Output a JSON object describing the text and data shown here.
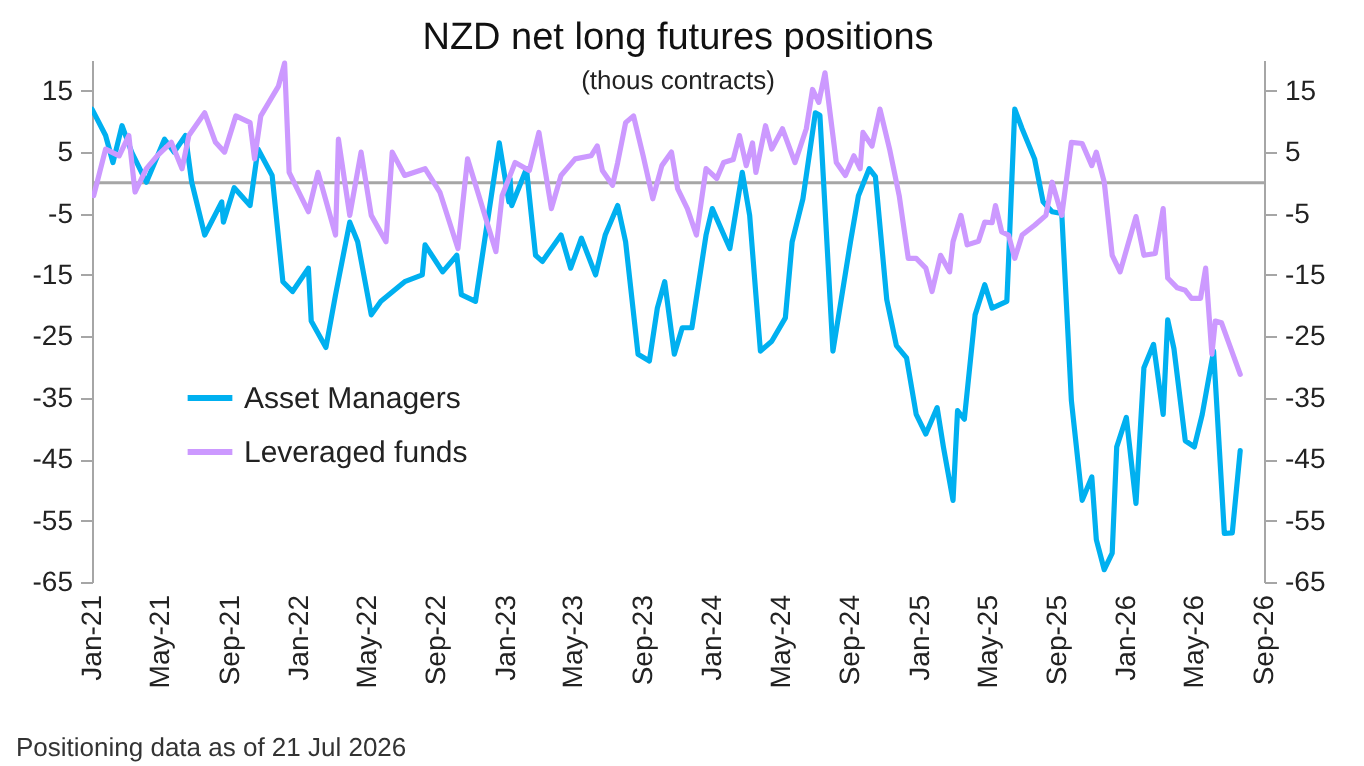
{
  "chart_data": {
    "type": "line",
    "title": "NZD net long futures positions",
    "subtitle": "(thous contracts)",
    "annotations": [
      "Positioning data as of 21 Jul 2026"
    ],
    "xlim": [
      "2021-01-01",
      "2026-09-01"
    ],
    "xticks": [
      {
        "value": "2021-01-01",
        "label": "Jan-21"
      },
      {
        "value": "2021-05-01",
        "label": "May-21"
      },
      {
        "value": "2021-09-01",
        "label": "Sep-21"
      },
      {
        "value": "2022-01-01",
        "label": "Jan-22"
      },
      {
        "value": "2022-05-01",
        "label": "May-22"
      },
      {
        "value": "2022-09-01",
        "label": "Sep-22"
      },
      {
        "value": "2023-01-01",
        "label": "Jan-23"
      },
      {
        "value": "2023-05-01",
        "label": "May-23"
      },
      {
        "value": "2023-09-01",
        "label": "Sep-23"
      },
      {
        "value": "2024-01-01",
        "label": "Jan-24"
      },
      {
        "value": "2024-05-01",
        "label": "May-24"
      },
      {
        "value": "2024-09-01",
        "label": "Sep-24"
      },
      {
        "value": "2025-01-01",
        "label": "Jan-25"
      },
      {
        "value": "2025-05-01",
        "label": "May-25"
      },
      {
        "value": "2025-09-01",
        "label": "Sep-25"
      },
      {
        "value": "2026-01-01",
        "label": "Jan-26"
      },
      {
        "value": "2026-05-01",
        "label": "May-26"
      },
      {
        "value": "2026-09-01",
        "label": "Sep-26"
      }
    ],
    "ylim": [
      -65,
      20
    ],
    "yticks": [
      -65,
      -55,
      -45,
      -35,
      -25,
      -15,
      -5,
      5,
      15
    ],
    "y2lim": [
      -65,
      20
    ],
    "y2ticks": [
      -65,
      -55,
      -45,
      -35,
      -25,
      -15,
      -5,
      5,
      15
    ],
    "ref_lines": [
      {
        "axis": "y",
        "value": 0,
        "color": "#a6a6a6"
      }
    ],
    "legend": "bottom left",
    "grid": false,
    "series": [
      {
        "name": "Asset Managers",
        "color": "#00b0f0",
        "x": [
          "2021-01-01",
          "2021-01-25",
          "2021-02-07",
          "2021-02-23",
          "2021-03-12",
          "2021-04-07",
          "2021-05-09",
          "2021-05-26",
          "2021-06-15",
          "2021-06-26",
          "2021-07-19",
          "2021-08-18",
          "2021-08-21",
          "2021-09-09",
          "2021-10-07",
          "2021-10-21",
          "2021-11-15",
          "2021-12-04",
          "2021-12-21",
          "2022-01-18",
          "2022-01-23",
          "2022-02-18",
          "2022-03-07",
          "2022-04-01",
          "2022-04-15",
          "2022-05-09",
          "2022-05-26",
          "2022-07-07",
          "2022-08-07",
          "2022-08-12",
          "2022-09-12",
          "2022-10-07",
          "2022-10-15",
          "2022-11-09",
          "2022-12-21",
          "2023-01-07",
          "2023-01-09",
          "2023-01-12",
          "2023-02-07",
          "2023-02-23",
          "2023-03-07",
          "2023-04-09",
          "2023-04-26",
          "2023-05-15",
          "2023-06-09",
          "2023-06-26",
          "2023-07-18",
          "2023-08-01",
          "2023-08-23",
          "2023-09-12",
          "2023-09-26",
          "2023-10-09",
          "2023-10-26",
          "2023-11-09",
          "2023-11-26",
          "2023-12-21",
          "2024-01-01",
          "2024-02-01",
          "2024-02-23",
          "2024-03-07",
          "2024-03-18",
          "2024-03-26",
          "2024-04-15",
          "2024-05-09",
          "2024-05-21",
          "2024-06-09",
          "2024-07-01",
          "2024-07-09",
          "2024-08-01",
          "2024-09-01",
          "2024-09-15",
          "2024-10-04",
          "2024-10-15",
          "2024-11-04",
          "2024-11-21",
          "2024-12-09",
          "2024-12-26",
          "2025-01-12",
          "2025-02-01",
          "2025-02-12",
          "2025-03-01",
          "2025-03-09",
          "2025-03-21",
          "2025-04-09",
          "2025-04-26",
          "2025-05-09",
          "2025-06-04",
          "2025-06-07",
          "2025-06-18",
          "2025-07-01",
          "2025-07-23",
          "2025-08-07",
          "2025-08-23",
          "2025-09-09",
          "2025-09-26",
          "2025-10-15",
          "2025-11-01",
          "2025-11-09",
          "2025-11-23",
          "2025-12-07",
          "2025-12-15",
          "2026-01-01",
          "2026-01-18",
          "2026-02-01",
          "2026-02-18",
          "2026-03-07",
          "2026-03-15",
          "2026-03-26",
          "2026-04-15",
          "2026-05-01",
          "2026-05-15",
          "2026-06-04",
          "2026-06-23",
          "2026-07-07",
          "2026-07-21"
        ],
        "values": [
          12,
          7.7,
          3.3,
          9.3,
          5,
          0.1,
          7.1,
          5,
          7.7,
          0.1,
          -8.5,
          -3.1,
          -6.4,
          -0.8,
          -3.7,
          5.5,
          1.2,
          -16.1,
          -17.7,
          -13.9,
          -22.5,
          -26.8,
          -18.2,
          -6.4,
          -9.6,
          -21.5,
          -19.3,
          -16.1,
          -15,
          -10.1,
          -14.5,
          -11.8,
          -18.2,
          -19.3,
          6.5,
          -3.1,
          0.7,
          -3.7,
          2.3,
          -11.8,
          -12.8,
          -8.5,
          -13.9,
          -9,
          -15,
          -8.5,
          -3.7,
          -9.6,
          -27.9,
          -29,
          -20.4,
          -16.1,
          -27.9,
          -23.6,
          -23.6,
          -8.5,
          -4.2,
          -10.7,
          1.7,
          -5.3,
          -18.2,
          -27.4,
          -25.8,
          -22,
          -9.6,
          -2.6,
          11.4,
          11,
          -27.4,
          -9.6,
          -2.1,
          2.3,
          1,
          -19,
          -26.5,
          -28.5,
          -37.7,
          -40.9,
          -36.6,
          -43,
          -51.7,
          -37.1,
          -38.5,
          -21.5,
          -16.6,
          -20.4,
          -19.3,
          -12.8,
          12,
          8.8,
          3.9,
          -3.1,
          -4.7,
          -5,
          -35.5,
          -51.7,
          -47.9,
          -58.1,
          -63,
          -60.3,
          -43,
          -38.2,
          -52.2,
          -30.1,
          -26.3,
          -37.7,
          -22.3,
          -27,
          -42,
          -43,
          -37.7,
          -27.4,
          -57.1,
          -57,
          -43.6
        ]
      },
      {
        "name": "Leveraged funds",
        "color": "#cc99ff",
        "x": [
          "2021-01-04",
          "2021-01-25",
          "2021-02-18",
          "2021-03-07",
          "2021-03-18",
          "2021-04-07",
          "2021-04-26",
          "2021-05-21",
          "2021-06-09",
          "2021-06-21",
          "2021-07-19",
          "2021-08-07",
          "2021-08-23",
          "2021-09-12",
          "2021-10-07",
          "2021-10-15",
          "2021-10-26",
          "2021-11-26",
          "2021-12-07",
          "2021-12-15",
          "2022-01-18",
          "2022-02-04",
          "2022-03-07",
          "2022-03-12",
          "2022-04-01",
          "2022-04-21",
          "2022-05-09",
          "2022-06-04",
          "2022-06-15",
          "2022-07-07",
          "2022-08-12",
          "2022-09-07",
          "2022-10-09",
          "2022-10-26",
          "2022-11-15",
          "2022-12-15",
          "2022-12-26",
          "2023-01-18",
          "2023-02-12",
          "2023-03-01",
          "2023-03-23",
          "2023-04-09",
          "2023-05-04",
          "2023-06-01",
          "2023-06-12",
          "2023-06-21",
          "2023-07-09",
          "2023-07-18",
          "2023-08-01",
          "2023-08-15",
          "2023-09-01",
          "2023-09-18",
          "2023-10-04",
          "2023-10-21",
          "2023-11-01",
          "2023-11-18",
          "2023-12-04",
          "2023-12-21",
          "2024-01-09",
          "2024-01-21",
          "2024-02-07",
          "2024-02-18",
          "2024-03-01",
          "2024-03-12",
          "2024-03-18",
          "2024-04-04",
          "2024-04-15",
          "2024-05-04",
          "2024-05-26",
          "2024-06-15",
          "2024-06-26",
          "2024-07-07",
          "2024-07-18",
          "2024-08-07",
          "2024-08-23",
          "2024-09-07",
          "2024-09-18",
          "2024-09-23",
          "2024-10-09",
          "2024-10-23",
          "2024-11-09",
          "2024-11-26",
          "2024-12-12",
          "2024-12-26",
          "2025-01-12",
          "2025-01-23",
          "2025-02-07",
          "2025-02-23",
          "2025-03-01",
          "2025-03-15",
          "2025-03-26",
          "2025-04-15",
          "2025-04-26",
          "2025-05-09",
          "2025-05-15",
          "2025-05-26",
          "2025-06-07",
          "2025-06-18",
          "2025-07-01",
          "2025-07-23",
          "2025-08-12",
          "2025-08-23",
          "2025-09-09",
          "2025-09-26",
          "2025-10-15",
          "2025-11-01",
          "2025-11-09",
          "2025-11-23",
          "2025-12-07",
          "2025-12-21",
          "2026-01-04",
          "2026-01-18",
          "2026-02-01",
          "2026-02-21",
          "2026-03-07",
          "2026-03-15",
          "2026-04-01",
          "2026-04-15",
          "2026-04-26",
          "2026-05-12",
          "2026-05-21",
          "2026-06-01",
          "2026-06-07",
          "2026-06-18",
          "2026-07-21"
        ],
        "values": [
          -2.1,
          5.5,
          4.4,
          7.7,
          -1.5,
          2.3,
          4.4,
          6.6,
          2.3,
          7.7,
          11.4,
          6.6,
          5,
          10.9,
          9.8,
          3.9,
          10.9,
          15.7,
          19.5,
          1.7,
          -4.7,
          1.7,
          -8.5,
          7.1,
          -5.3,
          5,
          -5.3,
          -9.6,
          5,
          1.2,
          2.3,
          -1.5,
          -10.7,
          3.9,
          -2.1,
          -11.2,
          -2.1,
          3.3,
          2,
          8.2,
          -4.2,
          1.2,
          3.9,
          4.4,
          6,
          2,
          -0.4,
          3.3,
          9.8,
          10.9,
          4.4,
          -2.6,
          2.8,
          5,
          -1,
          -4.2,
          -8.5,
          2.3,
          0.7,
          3.3,
          3.8,
          7.7,
          2.8,
          6.5,
          1.7,
          9.3,
          5.5,
          8.8,
          3.3,
          8.8,
          15.2,
          13.1,
          17.9,
          3.3,
          1.2,
          4.4,
          2.3,
          8.2,
          6,
          12,
          5.5,
          -2.1,
          -12.3,
          -12.3,
          -13.9,
          -17.7,
          -11.8,
          -14.5,
          -9.6,
          -5.3,
          -10.1,
          -9.5,
          -6.4,
          -6.5,
          -3.7,
          -8,
          -8.5,
          -12.3,
          -8.5,
          -6.9,
          -5.3,
          0.1,
          -5.3,
          6.6,
          6.4,
          2.8,
          5,
          0.1,
          -11.8,
          -14.5,
          -10,
          -5.5,
          -11.8,
          -11.5,
          -4.2,
          -15.5,
          -17.1,
          -17.5,
          -18.8,
          -18.8,
          -13.9,
          -27.9,
          -22.5,
          -22.8,
          -31.2
        ]
      }
    ]
  }
}
